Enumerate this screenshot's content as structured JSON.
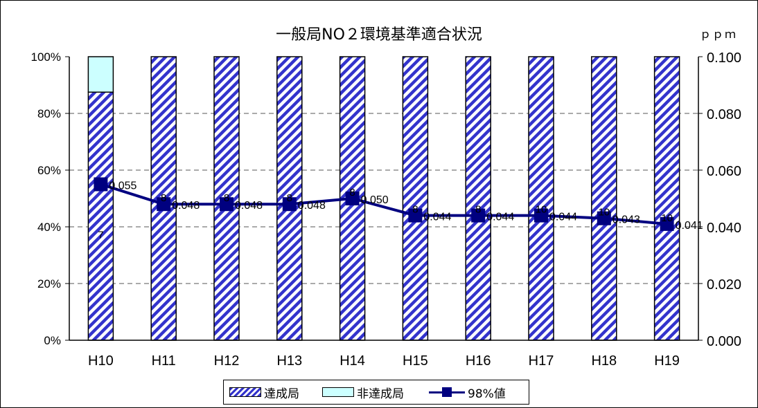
{
  "chart_data": {
    "type": "bar",
    "title": "一般局NO２環境基準適合状況",
    "y2_unit": "ｐｐｍ",
    "categories": [
      "H10",
      "H11",
      "H12",
      "H13",
      "H14",
      "H15",
      "H16",
      "H17",
      "H18",
      "H19"
    ],
    "series": [
      {
        "name": "達成局",
        "type": "bar-stacked",
        "fill": "hatch-blue",
        "values": [
          87.5,
          100,
          100,
          100,
          100,
          100,
          100,
          100,
          100,
          100
        ],
        "labels": [
          "7",
          "8",
          "8",
          "8",
          "8",
          "8",
          "8",
          "10",
          "10",
          "10"
        ]
      },
      {
        "name": "非達成局",
        "type": "bar-stacked",
        "fill": "#ccffff",
        "values": [
          12.5,
          0,
          0,
          0,
          0,
          0,
          0,
          0,
          0,
          0
        ],
        "labels": [
          "",
          "",
          "",
          "",
          "",
          "",
          "",
          "",
          "",
          ""
        ]
      },
      {
        "name": "98%値",
        "type": "line",
        "axis": "right",
        "color": "#000080",
        "values": [
          0.055,
          0.048,
          0.048,
          0.048,
          0.05,
          0.044,
          0.044,
          0.044,
          0.043,
          0.041
        ],
        "labels": [
          "0.055",
          "0.048",
          "0.048",
          "0.048",
          "0.050",
          "0.044",
          "0.044",
          "0.044",
          "0.043",
          "0.041"
        ]
      }
    ],
    "y_left": {
      "min": 0,
      "max": 100,
      "ticks": [
        "0%",
        "20%",
        "40%",
        "60%",
        "80%",
        "100%"
      ]
    },
    "y_right": {
      "min": 0,
      "max": 0.1,
      "ticks": [
        "0.000",
        "0.020",
        "0.040",
        "0.060",
        "0.080",
        "0.100"
      ]
    },
    "grid": "dashed-horizontal",
    "legend_position": "bottom"
  }
}
